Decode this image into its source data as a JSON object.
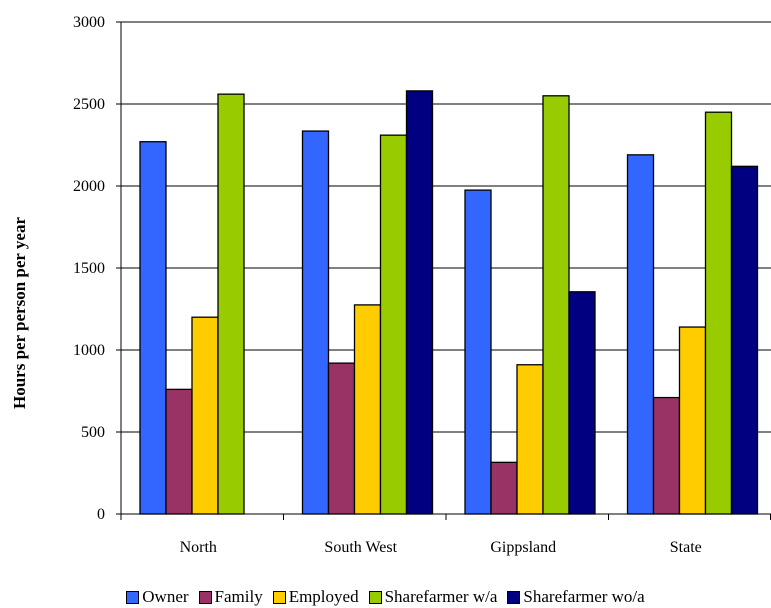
{
  "chart_data": {
    "type": "bar",
    "title": "",
    "xlabel": "",
    "ylabel": "Hours per person per year",
    "ylim": [
      0,
      3000
    ],
    "yticks": [
      0,
      500,
      1000,
      1500,
      2000,
      2500,
      3000
    ],
    "grid": true,
    "legend_position": "bottom",
    "categories": [
      "North",
      "South West",
      "Gippsland",
      "State"
    ],
    "series": [
      {
        "name": "Owner",
        "color": "#3366ff",
        "values": [
          2270,
          2335,
          1975,
          2190
        ]
      },
      {
        "name": "Family",
        "color": "#993366",
        "values": [
          760,
          920,
          315,
          710
        ]
      },
      {
        "name": "Employed",
        "color": "#ffcc00",
        "values": [
          1200,
          1275,
          910,
          1140
        ]
      },
      {
        "name": "Sharefarmer w/a",
        "color": "#99cc00",
        "values": [
          2560,
          2310,
          2550,
          2450
        ]
      },
      {
        "name": "Sharefarmer wo/a",
        "color": "#000080",
        "values": [
          null,
          2580,
          1355,
          2120
        ]
      }
    ]
  }
}
